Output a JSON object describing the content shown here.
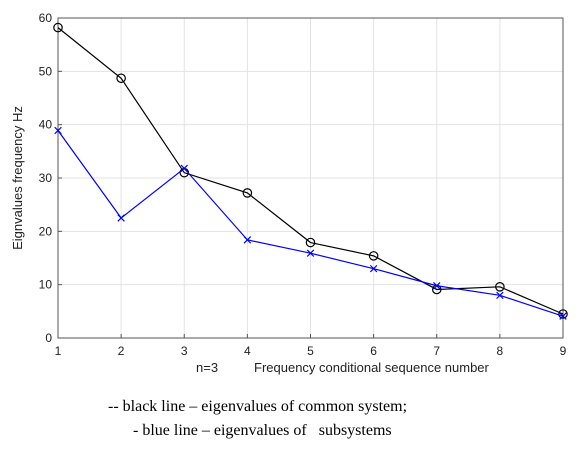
{
  "chart_data": {
    "type": "line",
    "x": [
      1,
      2,
      3,
      4,
      5,
      6,
      7,
      8,
      9
    ],
    "xlim": [
      1,
      9
    ],
    "ylim": [
      0,
      60
    ],
    "xticks": [
      "1",
      "2",
      "3",
      "4",
      "5",
      "6",
      "7",
      "8",
      "9"
    ],
    "yticks": [
      "0",
      "10",
      "20",
      "30",
      "40",
      "50",
      "60"
    ],
    "xlabel_prefix": "n=3",
    "xlabel": "Frequency conditional sequence number",
    "ylabel": "Eignvalues frequency Hz",
    "grid": true,
    "series": [
      {
        "color": "#000000",
        "marker": "circle",
        "values": [
          58.2,
          48.7,
          31.0,
          27.2,
          17.9,
          15.4,
          9.1,
          9.6,
          4.5
        ]
      },
      {
        "color": "#0000ff",
        "marker": "x",
        "values": [
          38.9,
          22.5,
          31.8,
          18.4,
          15.9,
          13.0,
          9.8,
          8.0,
          4.1
        ]
      }
    ]
  },
  "caption": {
    "line1": "-- black line – eigenvalues of common system;",
    "line2": "- blue line – eigenvalues of   subsystems"
  }
}
